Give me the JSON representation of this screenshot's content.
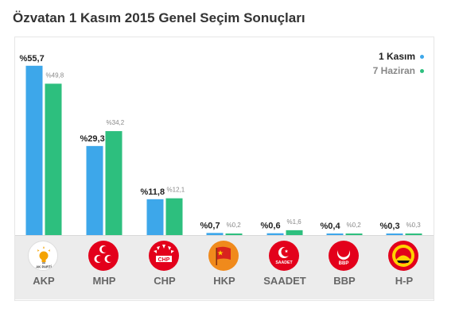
{
  "title": "Özvatan 1 Kasım 2015 Genel Seçim Sonuçları",
  "colors": {
    "series1": "#3da7ea",
    "series2": "#2dbf7e",
    "series1_label": "#222222",
    "series2_label": "#888888"
  },
  "legend": [
    {
      "label": "1 Kasım",
      "color": "#3da7ea"
    },
    {
      "label": "7 Haziran",
      "color": "#2dbf7e"
    }
  ],
  "parties": [
    {
      "name": "AKP",
      "logo_icon": "akp-lightbulb-icon",
      "logo_text": "AK PARTİ"
    },
    {
      "name": "MHP",
      "logo_icon": "mhp-crescents-icon"
    },
    {
      "name": "CHP",
      "logo_icon": "chp-arrows-icon",
      "logo_text": "CHP"
    },
    {
      "name": "HKP",
      "logo_icon": "hkp-flag-icon"
    },
    {
      "name": "SAADET",
      "logo_icon": "saadet-crescent-icon",
      "logo_text": "SAADET"
    },
    {
      "name": "BBP",
      "logo_icon": "bbp-crescent-icon",
      "logo_text": "BBP"
    },
    {
      "name": "H-P",
      "logo_icon": "hp-sun-icon"
    }
  ],
  "chart_data": {
    "type": "bar",
    "title": "Özvatan 1 Kasım 2015 Genel Seçim Sonuçları",
    "categories": [
      "AKP",
      "MHP",
      "CHP",
      "HKP",
      "SAADET",
      "BBP",
      "H-P"
    ],
    "series": [
      {
        "name": "1 Kasım",
        "values": [
          55.7,
          29.3,
          11.8,
          0.7,
          0.6,
          0.4,
          0.3
        ],
        "labels": [
          "%55,7",
          "%29,3",
          "%11,8",
          "%0,7",
          "%0,6",
          "%0,4",
          "%0,3"
        ]
      },
      {
        "name": "7 Haziran",
        "values": [
          49.8,
          34.2,
          12.1,
          0.2,
          1.6,
          0.2,
          0.3
        ],
        "labels": [
          "%49,8",
          "%34,2",
          "%12,1",
          "%0,2",
          "%1,6",
          "%0,2",
          "%0,3"
        ]
      }
    ],
    "ylim": [
      0,
      58
    ],
    "legend_position": "top-right",
    "grid": false
  }
}
